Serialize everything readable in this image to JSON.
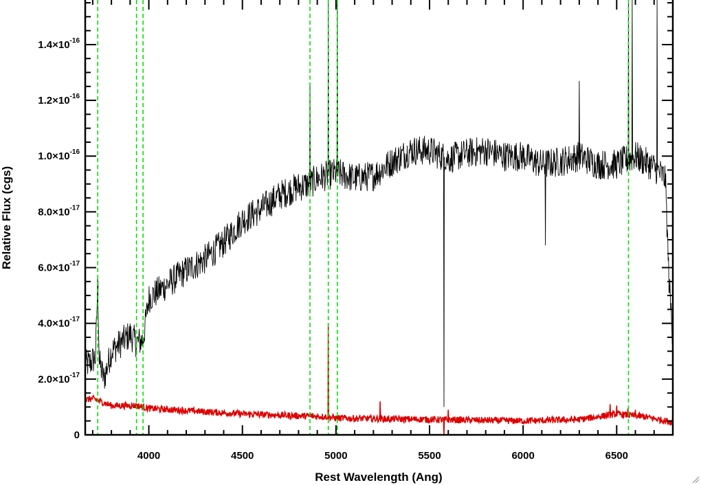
{
  "chart_data": {
    "type": "line",
    "xlabel": "Rest Wavelength (Ang)",
    "ylabel": "Relative Flux (cgs)",
    "xlim": [
      3660,
      6800
    ],
    "ylim": [
      -0.0,
      1.56e-16
    ],
    "x_ticks": [
      {
        "value": 4000,
        "label": "4000"
      },
      {
        "value": 4500,
        "label": "4500"
      },
      {
        "value": 5000,
        "label": "5000"
      },
      {
        "value": 5500,
        "label": "5500"
      },
      {
        "value": 6000,
        "label": "6000"
      },
      {
        "value": 6500,
        "label": "6500"
      }
    ],
    "x_minor_step": 100,
    "y_ticks": [
      {
        "value": 0,
        "mant": "0",
        "exp": ""
      },
      {
        "value": 2e-17,
        "mant": "2.0×10",
        "exp": "-17"
      },
      {
        "value": 4e-17,
        "mant": "4.0×10",
        "exp": "-17"
      },
      {
        "value": 6e-17,
        "mant": "6.0×10",
        "exp": "-17"
      },
      {
        "value": 8e-17,
        "mant": "8.0×10",
        "exp": "-17"
      },
      {
        "value": 1e-16,
        "mant": "1.0×10",
        "exp": "-16"
      },
      {
        "value": 1.2e-16,
        "mant": "1.2×10",
        "exp": "-16"
      },
      {
        "value": 1.4e-16,
        "mant": "1.4×10",
        "exp": "-16"
      }
    ],
    "y_minor_step": 5e-18,
    "grid": false,
    "vertical_lines": {
      "style": "dashed",
      "color": "#00e000",
      "x": [
        3727,
        3934,
        3969,
        4861,
        4959,
        5007,
        6563
      ]
    },
    "series": [
      {
        "color": "#000000",
        "points": [
          [
            3660,
            2.5e-17
          ],
          [
            3690,
            2.6e-17
          ],
          [
            3715,
            2.8e-17
          ],
          [
            3727,
            5.5e-17
          ],
          [
            3735,
            2.6e-17
          ],
          [
            3760,
            2e-17
          ],
          [
            3800,
            3e-17
          ],
          [
            3850,
            3.3e-17
          ],
          [
            3900,
            3.6e-17
          ],
          [
            3934,
            3.3e-17
          ],
          [
            3969,
            3.4e-17
          ],
          [
            4000,
            4.9e-17
          ],
          [
            4100,
            5.4e-17
          ],
          [
            4200,
            5.9e-17
          ],
          [
            4300,
            6.3e-17
          ],
          [
            4400,
            6.9e-17
          ],
          [
            4500,
            7.7e-17
          ],
          [
            4600,
            8.1e-17
          ],
          [
            4700,
            8.6e-17
          ],
          [
            4800,
            8.9e-17
          ],
          [
            4861,
            9e-17
          ],
          [
            4900,
            9.2e-17
          ],
          [
            5000,
            9.4e-17
          ],
          [
            5100,
            9.2e-17
          ],
          [
            5200,
            9.3e-17
          ],
          [
            5300,
            9.8e-17
          ],
          [
            5400,
            1.02e-16
          ],
          [
            5500,
            1.02e-16
          ],
          [
            5600,
            9.9e-17
          ],
          [
            5700,
            1.01e-16
          ],
          [
            5800,
            1.02e-16
          ],
          [
            5900,
            1e-16
          ],
          [
            6000,
            1e-16
          ],
          [
            6100,
            9.7e-17
          ],
          [
            6200,
            9.8e-17
          ],
          [
            6300,
            1e-16
          ],
          [
            6400,
            9.7e-17
          ],
          [
            6500,
            9.7e-17
          ],
          [
            6600,
            1e-16
          ],
          [
            6700,
            9.6e-17
          ],
          [
            6760,
            9.2e-17
          ],
          [
            6780,
            5.5e-17
          ],
          [
            6800,
            3.5e-17
          ]
        ],
        "features": [
          [
            3727,
            5.5e-17
          ],
          [
            4861,
            1.26e-16
          ],
          [
            4959,
            1.56e-16
          ],
          [
            5007,
            1.56e-16
          ],
          [
            5577,
            1e-17
          ],
          [
            6119,
            6.8e-17
          ],
          [
            6300,
            1.27e-16
          ],
          [
            6563,
            1.56e-16
          ],
          [
            6583,
            1.56e-16
          ],
          [
            6716,
            1.56e-16
          ]
        ]
      },
      {
        "color": "#dd0000",
        "points": [
          [
            3660,
            1.25e-17
          ],
          [
            3700,
            1.3e-17
          ],
          [
            3800,
            1.05e-17
          ],
          [
            3934,
            1.05e-17
          ],
          [
            4000,
            9.5e-18
          ],
          [
            4500,
            7.5e-18
          ],
          [
            4959,
            6.5e-18
          ],
          [
            5000,
            6e-18
          ],
          [
            5500,
            5.5e-18
          ],
          [
            6000,
            5e-18
          ],
          [
            6300,
            5.5e-18
          ],
          [
            6500,
            7.5e-18
          ],
          [
            6650,
            6.5e-18
          ],
          [
            6800,
            4.5e-18
          ]
        ],
        "features": [
          [
            4959,
            4e-17
          ],
          [
            5236,
            1.2e-17
          ],
          [
            5577,
            -4e-18
          ],
          [
            5600,
            9e-18
          ],
          [
            6465,
            1.1e-17
          ],
          [
            6500,
            1.05e-17
          ],
          [
            6560,
            9.5e-18
          ],
          [
            6600,
            9e-18
          ]
        ]
      }
    ]
  }
}
